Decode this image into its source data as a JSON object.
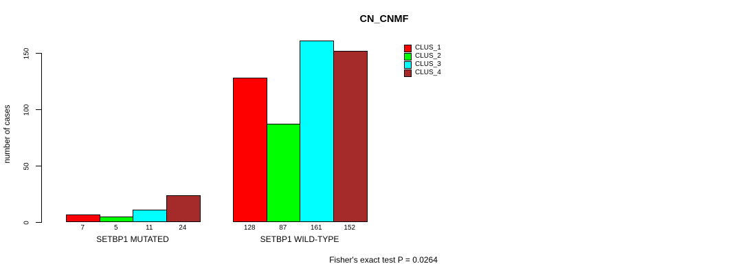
{
  "chart_data": {
    "type": "bar",
    "title": "CN_CNMF",
    "ylabel": "number of cases",
    "xlabel": "",
    "groups": [
      "SETBP1 MUTATED",
      "SETBP1 WILD-TYPE"
    ],
    "series": [
      {
        "name": "CLUS_1",
        "color": "#ff0000",
        "values": [
          7,
          128
        ]
      },
      {
        "name": "CLUS_2",
        "color": "#00ff00",
        "values": [
          5,
          87
        ]
      },
      {
        "name": "CLUS_3",
        "color": "#00ffff",
        "values": [
          11,
          161
        ]
      },
      {
        "name": "CLUS_4",
        "color": "#a52a2a",
        "values": [
          24,
          152
        ]
      }
    ],
    "bar_value_labels": [
      [
        7,
        5,
        11,
        24
      ],
      [
        128,
        87,
        161,
        152
      ]
    ],
    "yticks": [
      0,
      50,
      100,
      150
    ],
    "ylim": [
      0,
      160
    ],
    "grid": false,
    "legend_position": "top-right",
    "annotation": "Fisher's exact test P = 0.0264",
    "axis_color": "#000000",
    "background_color": "#ffffff"
  }
}
